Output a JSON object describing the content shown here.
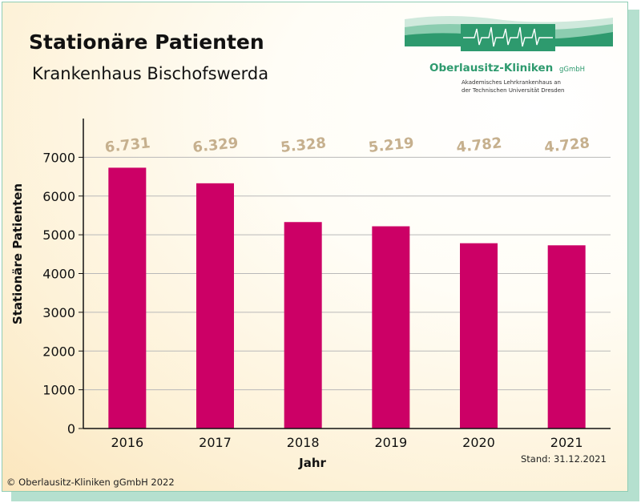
{
  "colors": {
    "bar": "#cc0066",
    "value_label": "#c6b08e",
    "logo_green": "#2e9a6e"
  },
  "logo": {
    "name": "Oberlausitz-Kliniken",
    "suffix": "gGmbH",
    "line1": "Akademisches Lehrkrankenhaus an",
    "line2": "der Technischen Universität Dresden"
  },
  "footer": {
    "copyright": "© Oberlausitz-Kliniken gGmbH 2022",
    "stand": "Stand: 31.12.2021"
  },
  "chart_data": {
    "type": "bar",
    "title": "Stationäre Patienten",
    "subtitle": "Krankenhaus Bischofswerda",
    "xlabel": "Jahr",
    "ylabel": "Stationäre Patienten",
    "categories": [
      "2016",
      "2017",
      "2018",
      "2019",
      "2020",
      "2021"
    ],
    "values": [
      6731,
      6329,
      5328,
      5219,
      4782,
      4728
    ],
    "value_labels": [
      "6.731",
      "6.329",
      "5.328",
      "5.219",
      "4.782",
      "4.728"
    ],
    "yticks": [
      "0",
      "1000",
      "2000",
      "3000",
      "4000",
      "5000",
      "6000",
      "7000"
    ],
    "ylim": [
      0,
      8000
    ],
    "grid": true,
    "legend": "none"
  }
}
